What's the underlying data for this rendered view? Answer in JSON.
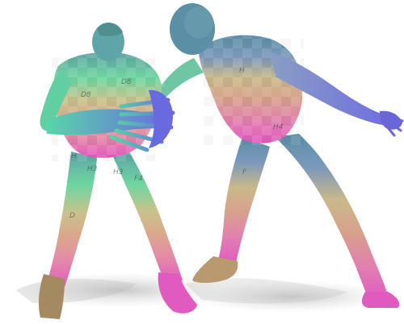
{
  "scene": {
    "description_hidden": false,
    "background": "#ffffff",
    "figures": [
      {
        "id": "figure-left",
        "pose": "crouched-holding",
        "gradient": {
          "top": "#5fa4a6",
          "chest": "#6fd6a0",
          "waist": "#c9b98a",
          "legs": "#d99a8c",
          "feet": "#e05bc0"
        }
      },
      {
        "id": "figure-right",
        "pose": "lunging-arm-extended",
        "gradient": {
          "head": "#5b8fa6",
          "arm": "#7d82d9",
          "waist": "#c9b98a",
          "legs": "#d99a8c",
          "feet": "#e05bc0"
        }
      }
    ],
    "texture_labels": [
      "D8",
      "D8",
      "H3",
      "H3",
      "H4",
      "F4",
      "H",
      "H",
      "D",
      "F"
    ]
  }
}
